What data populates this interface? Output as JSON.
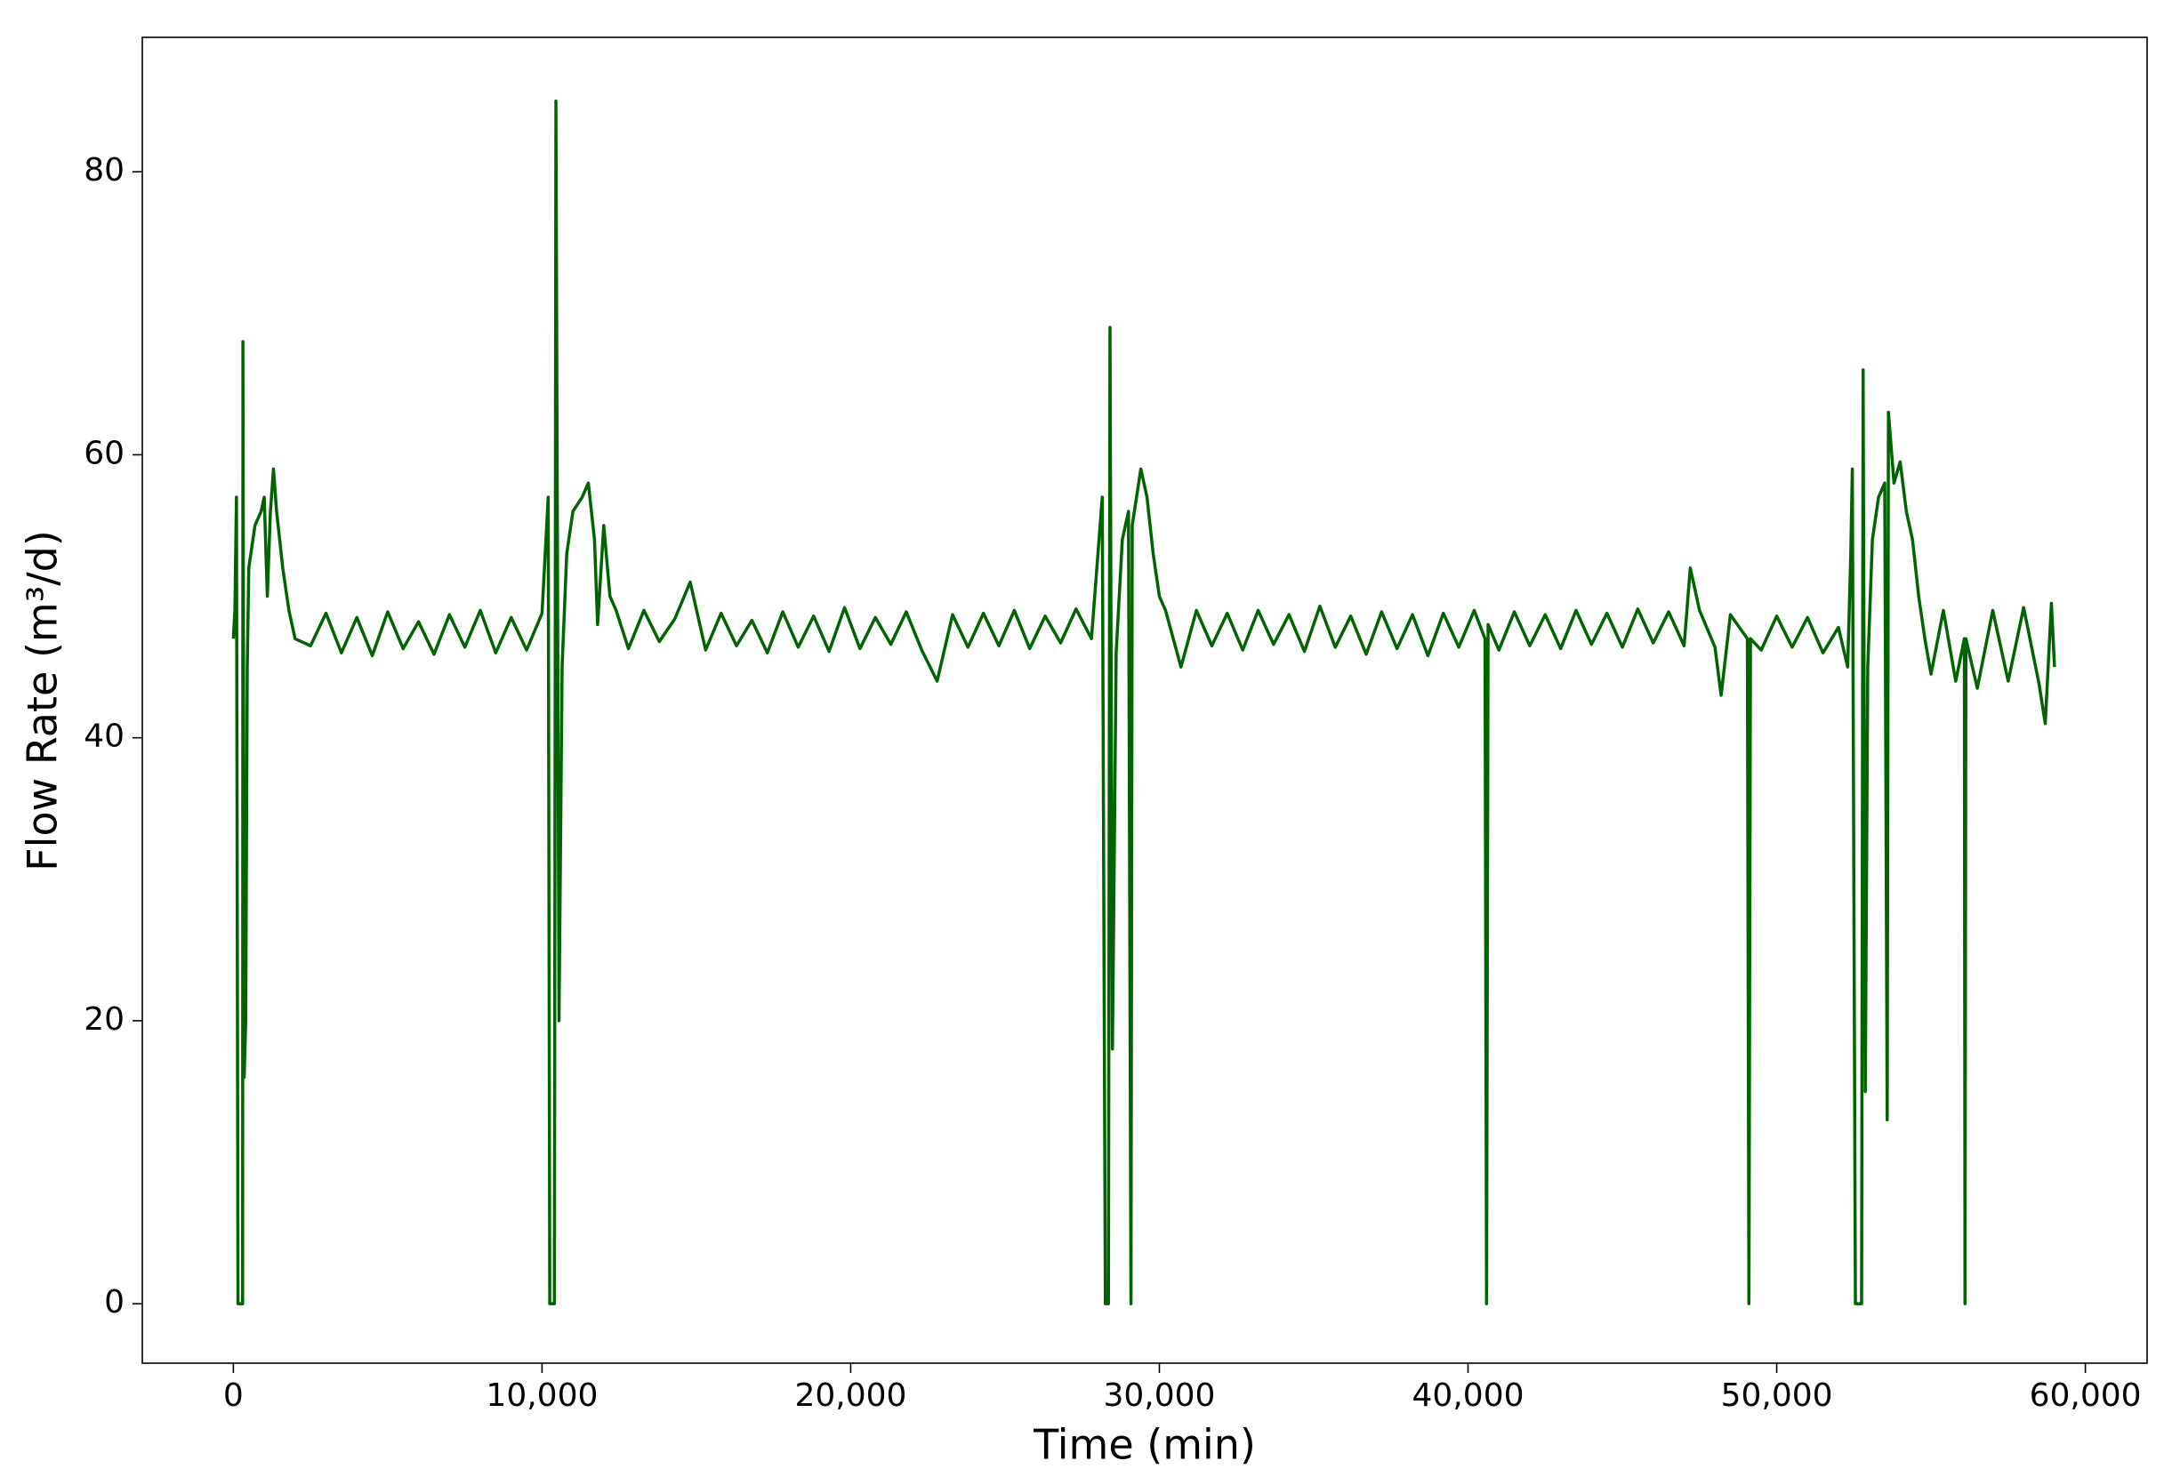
{
  "chart_data": {
    "type": "line",
    "xlabel": "Time (min)",
    "ylabel": "Flow Rate (m³/d)",
    "xlim": [
      -2950,
      62000
    ],
    "xticks": [
      0,
      {
        "value": 10000,
        "label": "10,000"
      },
      {
        "value": 20000,
        "label": "20,000"
      },
      {
        "value": 30000,
        "label": "30,000"
      },
      {
        "value": 40000,
        "label": "40,000"
      },
      {
        "value": 50000,
        "label": "50,000"
      },
      {
        "value": 60000,
        "label": "60,000"
      }
    ],
    "ylim": [
      -4.2,
      89.5
    ],
    "yticks": [
      0,
      20,
      40,
      60,
      80
    ],
    "grid": false,
    "x": [
      0,
      50,
      100,
      150,
      300,
      310,
      350,
      400,
      450,
      500,
      700,
      900,
      1000,
      1100,
      1200,
      1300,
      1400,
      1600,
      1800,
      2000,
      2500,
      3000,
      3500,
      4000,
      4500,
      5000,
      5500,
      6000,
      6500,
      7000,
      7500,
      8000,
      8500,
      9000,
      9500,
      10000,
      10200,
      10250,
      10400,
      10450,
      10550,
      10650,
      10800,
      11000,
      11300,
      11500,
      11700,
      11800,
      12000,
      12200,
      12400,
      12800,
      13300,
      13800,
      14300,
      14800,
      15300,
      15800,
      16300,
      16800,
      17300,
      17800,
      18300,
      18800,
      19300,
      19800,
      20300,
      20800,
      21300,
      21800,
      22300,
      22800,
      23300,
      23800,
      24300,
      24800,
      25300,
      25800,
      26300,
      26800,
      27300,
      27800,
      28150,
      28250,
      28350,
      28400,
      28480,
      28600,
      28800,
      29000,
      29080,
      29120,
      29400,
      29600,
      29800,
      30000,
      30200,
      30700,
      31200,
      31700,
      32200,
      32700,
      33200,
      33700,
      34200,
      34700,
      35200,
      35700,
      36200,
      36700,
      37200,
      37700,
      38200,
      38700,
      39200,
      39700,
      40200,
      40550,
      40600,
      40650,
      41000,
      41500,
      42000,
      42500,
      43000,
      43500,
      44000,
      44500,
      45000,
      45500,
      46000,
      46500,
      47000,
      47200,
      47500,
      48000,
      48200,
      48500,
      49050,
      49100,
      49150,
      49500,
      50000,
      50500,
      51000,
      51500,
      52000,
      52300,
      52400,
      52450,
      52550,
      52750,
      52800,
      52870,
      52950,
      53100,
      53300,
      53500,
      53580,
      53620,
      53800,
      54000,
      54200,
      54400,
      54600,
      54800,
      55000,
      55400,
      55800,
      56080,
      56100,
      56130,
      56500,
      57000,
      57500,
      58000,
      58500,
      58700,
      58900,
      59000
    ],
    "series": [
      {
        "name": "Flow Rate",
        "color": "#006400",
        "values": [
          47,
          49,
          57,
          0,
          0,
          68,
          16,
          20,
          45,
          52,
          55,
          56,
          57,
          50,
          56,
          59,
          56,
          52,
          49,
          47,
          46.5,
          48.8,
          46,
          48.5,
          45.8,
          48.9,
          46.3,
          48.2,
          45.9,
          48.7,
          46.4,
          49,
          46,
          48.5,
          46.2,
          48.8,
          57,
          0,
          0,
          85,
          20,
          45,
          53,
          56,
          57,
          58,
          54,
          48,
          55,
          50,
          49,
          46.3,
          49,
          46.8,
          48.4,
          51,
          46.2,
          48.8,
          46.5,
          48.3,
          46,
          48.9,
          46.4,
          48.6,
          46.1,
          49.2,
          46.3,
          48.5,
          46.6,
          48.9,
          46.2,
          44,
          48.7,
          46.4,
          48.8,
          46.5,
          49,
          46.3,
          48.6,
          46.7,
          49.1,
          47,
          57,
          0,
          0,
          69,
          18,
          46,
          54,
          56,
          0,
          55,
          59,
          57,
          53,
          50,
          49,
          45,
          49,
          46.5,
          48.8,
          46.2,
          49,
          46.6,
          48.7,
          46.1,
          49.3,
          46.4,
          48.6,
          45.9,
          48.9,
          46.3,
          48.7,
          45.8,
          48.8,
          46.4,
          49,
          47,
          0,
          48,
          46.2,
          48.9,
          46.5,
          48.7,
          46.3,
          49,
          46.6,
          48.8,
          46.4,
          49.1,
          46.7,
          48.9,
          46.5,
          52,
          49,
          46.4,
          43,
          48.7,
          47,
          0,
          47,
          46.2,
          48.6,
          46.4,
          48.5,
          46,
          47.8,
          45,
          53,
          59,
          0,
          0,
          66,
          15,
          45,
          54,
          57,
          58,
          13,
          63,
          58,
          59.5,
          56,
          54,
          50,
          47,
          44.5,
          49,
          44,
          47,
          0,
          47,
          43.5,
          49,
          44,
          49.2,
          43.8,
          41,
          49.5,
          45
        ]
      }
    ]
  }
}
